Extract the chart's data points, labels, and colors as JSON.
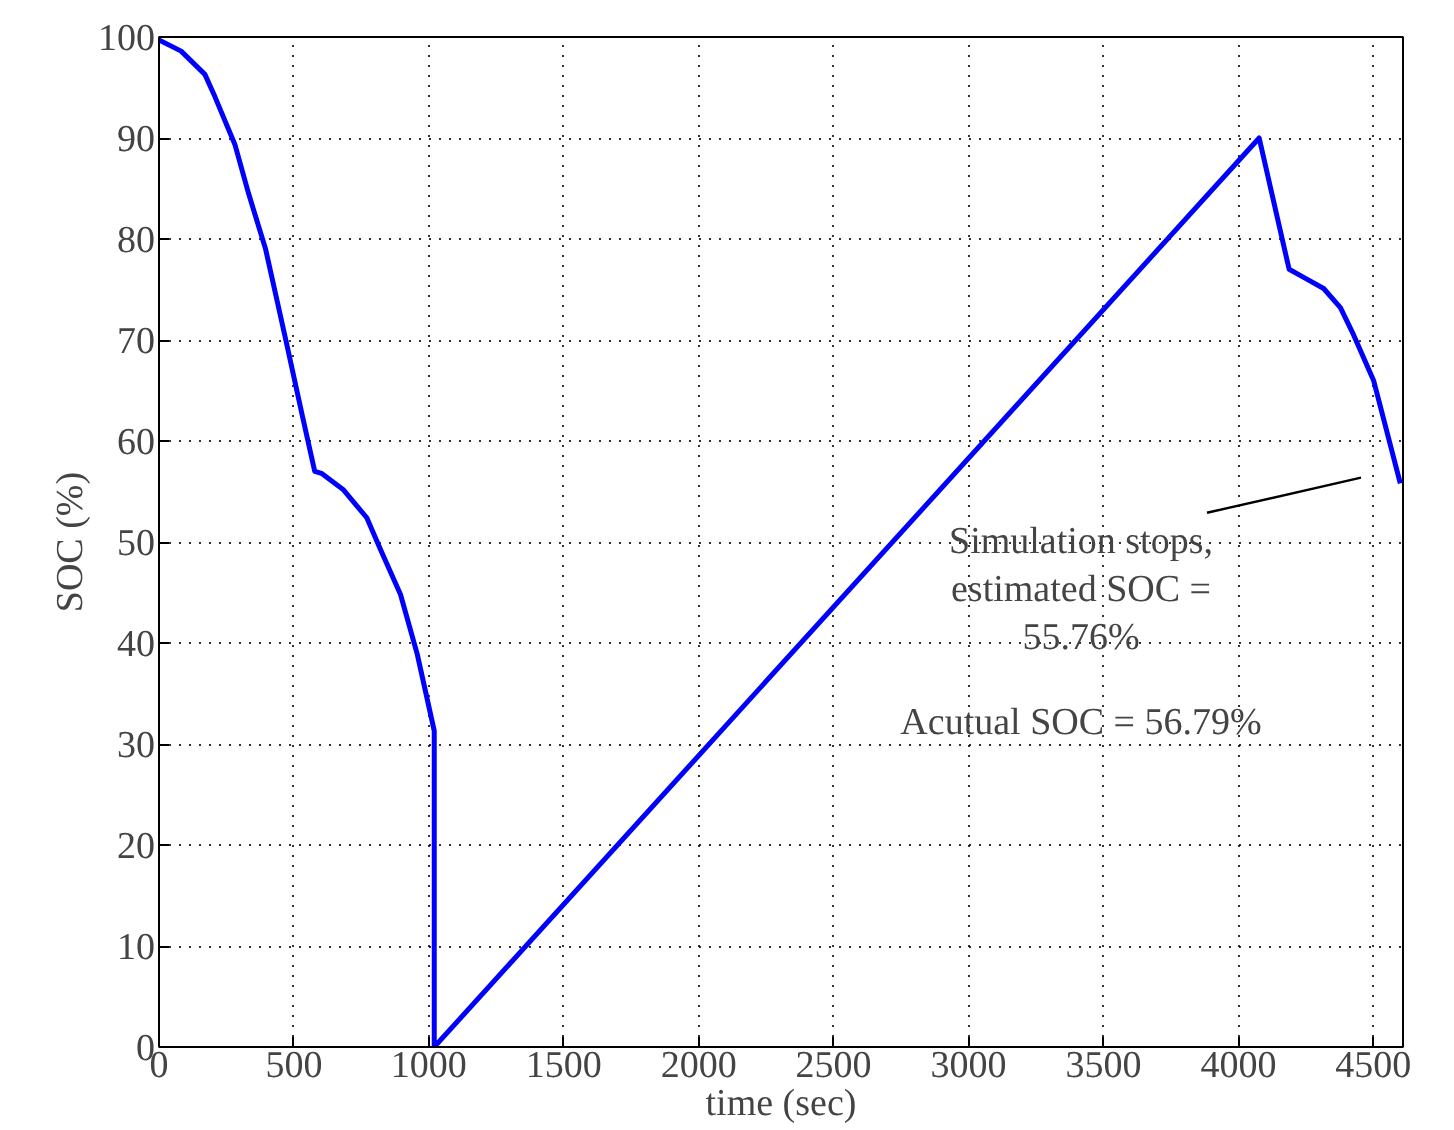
{
  "chart_data": {
    "type": "line",
    "xlabel": "time (sec)",
    "ylabel": "SOC (%)",
    "x": [
      0,
      82,
      170,
      207,
      282,
      332,
      395,
      470,
      532,
      577,
      602,
      682,
      770,
      820,
      895,
      957,
      1020,
      1020,
      4077,
      4188,
      4242,
      4316,
      4378,
      4427,
      4501,
      4600
    ],
    "series": [
      {
        "color": "#0000ff",
        "values": [
          99.7,
          98.6,
          96.3,
          94.1,
          89.3,
          84.5,
          79,
          70,
          62.4,
          57,
          56.8,
          55.2,
          52.4,
          49.3,
          44.8,
          38.9,
          31.3,
          0,
          90,
          77,
          76.2,
          75.1,
          73.2,
          70.5,
          66,
          55.8
        ]
      }
    ],
    "xlim": [
      0,
      4610
    ],
    "ylim": [
      0,
      100
    ],
    "xticks": [
      0,
      500,
      1000,
      1500,
      2000,
      2500,
      3000,
      3500,
      4000,
      4500
    ],
    "yticks": [
      0,
      10,
      20,
      30,
      40,
      50,
      60,
      70,
      80,
      90,
      100
    ],
    "grid": true,
    "marker": "none",
    "line_style": "solid",
    "annotations": [
      "Simulation stops,\nestimated SOC =\n55.76%",
      "Acutual SOC = 56.79%"
    ]
  }
}
